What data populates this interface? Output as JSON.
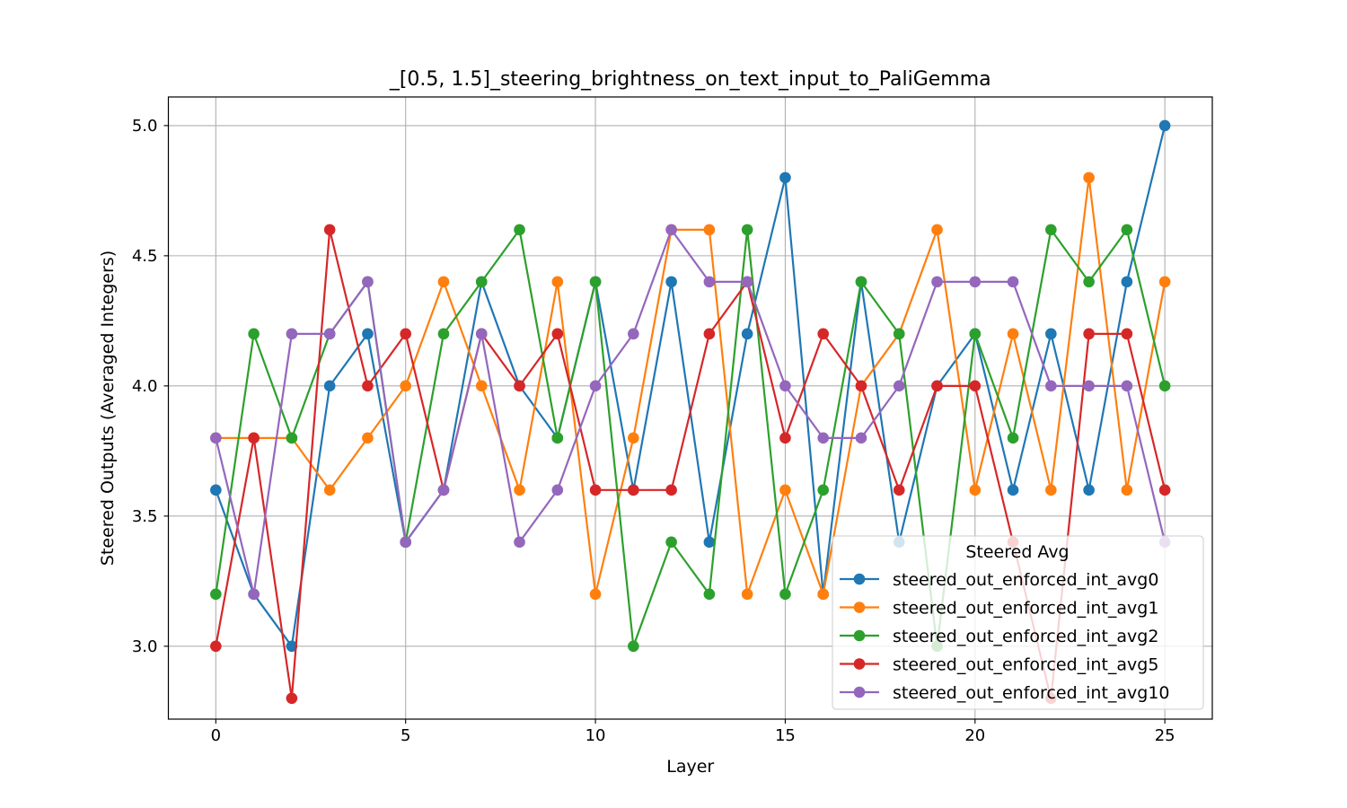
{
  "chart_data": {
    "type": "line",
    "title": "_[0.5, 1.5]_steering_brightness_on_text_input_to_PaliGemma",
    "xlabel": "Layer",
    "ylabel": "Steered Outputs (Averaged Integers)",
    "xlim": [
      -1.25,
      26.25
    ],
    "ylim": [
      2.72,
      5.11
    ],
    "xticks": [
      0,
      5,
      10,
      15,
      20,
      25
    ],
    "xtick_labels": [
      "0",
      "5",
      "10",
      "15",
      "20",
      "25"
    ],
    "yticks": [
      3.0,
      3.5,
      4.0,
      4.5,
      5.0
    ],
    "ytick_labels": [
      "3.0",
      "3.5",
      "4.0",
      "4.5",
      "5.0"
    ],
    "grid": true,
    "legend": {
      "title": "Steered Avg",
      "placement": "lower right"
    },
    "x": [
      0,
      1,
      2,
      3,
      4,
      5,
      6,
      7,
      8,
      9,
      10,
      11,
      12,
      13,
      14,
      15,
      16,
      17,
      18,
      19,
      20,
      21,
      22,
      23,
      24,
      25
    ],
    "series": [
      {
        "name": "steered_out_enforced_int_avg0",
        "color": "#1f77b4",
        "values": [
          3.6,
          3.2,
          3.0,
          4.0,
          4.2,
          3.4,
          3.6,
          4.4,
          4.0,
          3.8,
          4.4,
          3.6,
          4.4,
          3.4,
          4.2,
          4.8,
          3.2,
          4.4,
          3.4,
          4.0,
          4.2,
          3.6,
          4.2,
          3.6,
          4.4,
          5.0
        ]
      },
      {
        "name": "steered_out_enforced_int_avg1",
        "color": "#ff7f0e",
        "values": [
          3.8,
          3.8,
          3.8,
          3.6,
          3.8,
          4.0,
          4.4,
          4.0,
          3.6,
          4.4,
          3.2,
          3.8,
          4.6,
          4.6,
          3.2,
          3.6,
          3.2,
          4.0,
          4.2,
          4.6,
          3.6,
          4.2,
          3.6,
          4.8,
          3.6,
          4.4
        ]
      },
      {
        "name": "steered_out_enforced_int_avg2",
        "color": "#2ca02c",
        "values": [
          3.2,
          4.2,
          3.8,
          4.2,
          4.4,
          3.4,
          4.2,
          4.4,
          4.6,
          3.8,
          4.4,
          3.0,
          3.4,
          3.2,
          4.6,
          3.2,
          3.6,
          4.4,
          4.2,
          3.0,
          4.2,
          3.8,
          4.6,
          4.4,
          4.6,
          4.0
        ]
      },
      {
        "name": "steered_out_enforced_int_avg5",
        "color": "#d62728",
        "values": [
          3.0,
          3.8,
          2.8,
          4.6,
          4.0,
          4.2,
          3.6,
          4.2,
          4.0,
          4.2,
          3.6,
          3.6,
          3.6,
          4.2,
          4.4,
          3.8,
          4.2,
          4.0,
          3.6,
          4.0,
          4.0,
          3.4,
          2.8,
          4.2,
          4.2,
          3.6
        ]
      },
      {
        "name": "steered_out_enforced_int_avg10",
        "color": "#9467bd",
        "values": [
          3.8,
          3.2,
          4.2,
          4.2,
          4.4,
          3.4,
          3.6,
          4.2,
          3.4,
          3.6,
          4.0,
          4.2,
          4.6,
          4.4,
          4.4,
          4.0,
          3.8,
          3.8,
          4.0,
          4.4,
          4.4,
          4.4,
          4.0,
          4.0,
          4.0,
          3.4
        ]
      }
    ]
  }
}
